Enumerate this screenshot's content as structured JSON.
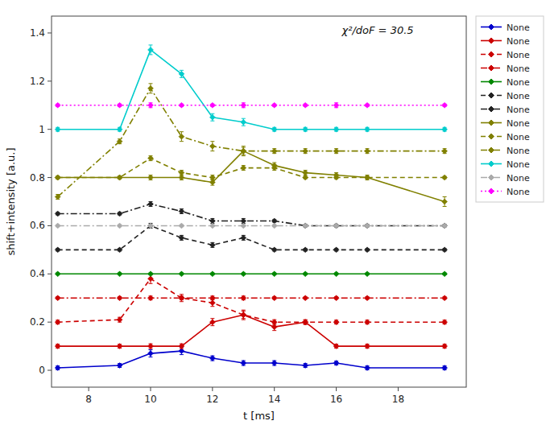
{
  "chart_data": {
    "type": "line",
    "xlabel": "t [ms]",
    "ylabel": "shift+intensity [a.u.]",
    "annotation": "χ²/doF = 30.5",
    "xlim": [
      6.8,
      20.2
    ],
    "ylim": [
      -0.07,
      1.47
    ],
    "xticks": [
      8,
      10,
      12,
      14,
      16,
      18
    ],
    "yticks": [
      0,
      0.2,
      0.4,
      0.6,
      0.8,
      1.0,
      1.2,
      1.4
    ],
    "grid": false,
    "legend": "right",
    "x": [
      7.0,
      9.0,
      10.0,
      11.0,
      12.0,
      13.0,
      14.0,
      15.0,
      16.0,
      17.0,
      19.5
    ],
    "series": [
      {
        "name": "None",
        "color": "#0000cc",
        "line_style": "solid",
        "marker": "diamond",
        "values": [
          0.01,
          0.02,
          0.07,
          0.08,
          0.05,
          0.03,
          0.03,
          0.02,
          0.03,
          0.01,
          0.01
        ],
        "yerr": [
          0.008,
          0.008,
          0.015,
          0.015,
          0.01,
          0.01,
          0.01,
          0.008,
          0.008,
          0.008,
          0.008
        ]
      },
      {
        "name": "None",
        "color": "#cc0000",
        "line_style": "solid",
        "marker": "diamond",
        "values": [
          0.1,
          0.1,
          0.1,
          0.1,
          0.2,
          0.23,
          0.18,
          0.2,
          0.1,
          0.1,
          0.1
        ],
        "yerr": [
          0.008,
          0.008,
          0.01,
          0.01,
          0.015,
          0.02,
          0.015,
          0.01,
          0.008,
          0.008,
          0.008
        ]
      },
      {
        "name": "None",
        "color": "#cc0000",
        "line_style": "dashed",
        "marker": "diamond",
        "values": [
          0.2,
          0.21,
          0.38,
          0.3,
          0.28,
          0.23,
          0.2,
          0.2,
          0.2,
          0.2,
          0.2
        ],
        "yerr": [
          0.008,
          0.01,
          0.02,
          0.015,
          0.015,
          0.015,
          0.01,
          0.008,
          0.008,
          0.008,
          0.008
        ]
      },
      {
        "name": "None",
        "color": "#cc0000",
        "line_style": "dashdot",
        "marker": "diamond",
        "values": [
          0.3,
          0.3,
          0.3,
          0.3,
          0.3,
          0.3,
          0.3,
          0.3,
          0.3,
          0.3,
          0.3
        ],
        "yerr": [
          0.005,
          0.005,
          0.008,
          0.008,
          0.008,
          0.008,
          0.005,
          0.005,
          0.005,
          0.005,
          0.005
        ]
      },
      {
        "name": "None",
        "color": "#008800",
        "line_style": "solid",
        "marker": "diamond",
        "values": [
          0.4,
          0.4,
          0.4,
          0.4,
          0.4,
          0.4,
          0.4,
          0.4,
          0.4,
          0.4,
          0.4
        ],
        "yerr": [
          0.004,
          0.004,
          0.004,
          0.004,
          0.004,
          0.004,
          0.004,
          0.004,
          0.004,
          0.004,
          0.004
        ]
      },
      {
        "name": "None",
        "color": "#222222",
        "line_style": "dashed",
        "marker": "diamond",
        "values": [
          0.5,
          0.5,
          0.6,
          0.55,
          0.52,
          0.55,
          0.5,
          0.5,
          0.5,
          0.5,
          0.5
        ],
        "yerr": [
          0.005,
          0.005,
          0.01,
          0.01,
          0.01,
          0.01,
          0.005,
          0.005,
          0.005,
          0.005,
          0.005
        ]
      },
      {
        "name": "None",
        "color": "#222222",
        "line_style": "dashdot",
        "marker": "diamond",
        "values": [
          0.65,
          0.65,
          0.69,
          0.66,
          0.62,
          0.62,
          0.62,
          0.6,
          0.6,
          0.6,
          0.6
        ],
        "yerr": [
          0.005,
          0.005,
          0.01,
          0.01,
          0.01,
          0.01,
          0.005,
          0.005,
          0.005,
          0.005,
          0.005
        ]
      },
      {
        "name": "None",
        "color": "#808000",
        "line_style": "solid",
        "marker": "diamond",
        "values": [
          0.8,
          0.8,
          0.8,
          0.8,
          0.78,
          0.91,
          0.85,
          0.82,
          0.81,
          0.8,
          0.7
        ],
        "yerr": [
          0.005,
          0.005,
          0.01,
          0.01,
          0.012,
          0.02,
          0.012,
          0.01,
          0.01,
          0.01,
          0.02
        ]
      },
      {
        "name": "None",
        "color": "#808000",
        "line_style": "dashed",
        "marker": "diamond",
        "values": [
          0.8,
          0.8,
          0.88,
          0.82,
          0.8,
          0.84,
          0.84,
          0.8,
          0.8,
          0.8,
          0.8
        ],
        "yerr": [
          0.005,
          0.005,
          0.01,
          0.01,
          0.01,
          0.01,
          0.01,
          0.005,
          0.005,
          0.005,
          0.005
        ]
      },
      {
        "name": "None",
        "color": "#808000",
        "line_style": "dashdot",
        "marker": "diamond",
        "values": [
          0.72,
          0.95,
          1.17,
          0.97,
          0.93,
          0.91,
          0.91,
          0.91,
          0.91,
          0.91,
          0.91
        ],
        "yerr": [
          0.01,
          0.01,
          0.02,
          0.02,
          0.02,
          0.015,
          0.01,
          0.01,
          0.01,
          0.01,
          0.01
        ]
      },
      {
        "name": "None",
        "color": "#00cccc",
        "line_style": "solid",
        "marker": "diamond",
        "values": [
          1.0,
          1.0,
          1.33,
          1.23,
          1.05,
          1.03,
          1.0,
          1.0,
          1.0,
          1.0,
          1.0
        ],
        "yerr": [
          0.008,
          0.008,
          0.02,
          0.015,
          0.015,
          0.015,
          0.008,
          0.008,
          0.008,
          0.008,
          0.008
        ]
      },
      {
        "name": "None",
        "color": "#aaaaaa",
        "line_style": "dashdot",
        "marker": "diamond",
        "values": [
          0.6,
          0.6,
          0.6,
          0.6,
          0.6,
          0.6,
          0.6,
          0.6,
          0.6,
          0.6,
          0.6
        ],
        "yerr": [
          0.004,
          0.004,
          0.004,
          0.004,
          0.004,
          0.004,
          0.004,
          0.004,
          0.004,
          0.004,
          0.004
        ]
      },
      {
        "name": "None",
        "color": "#ff00ff",
        "line_style": "dotted",
        "marker": "diamond",
        "values": [
          1.1,
          1.1,
          1.1,
          1.1,
          1.1,
          1.1,
          1.1,
          1.1,
          1.1,
          1.1,
          1.1
        ],
        "yerr": [
          0.005,
          0.005,
          0.01,
          0.005,
          0.005,
          0.01,
          0.005,
          0.005,
          0.01,
          0.005,
          0.005
        ]
      }
    ]
  }
}
